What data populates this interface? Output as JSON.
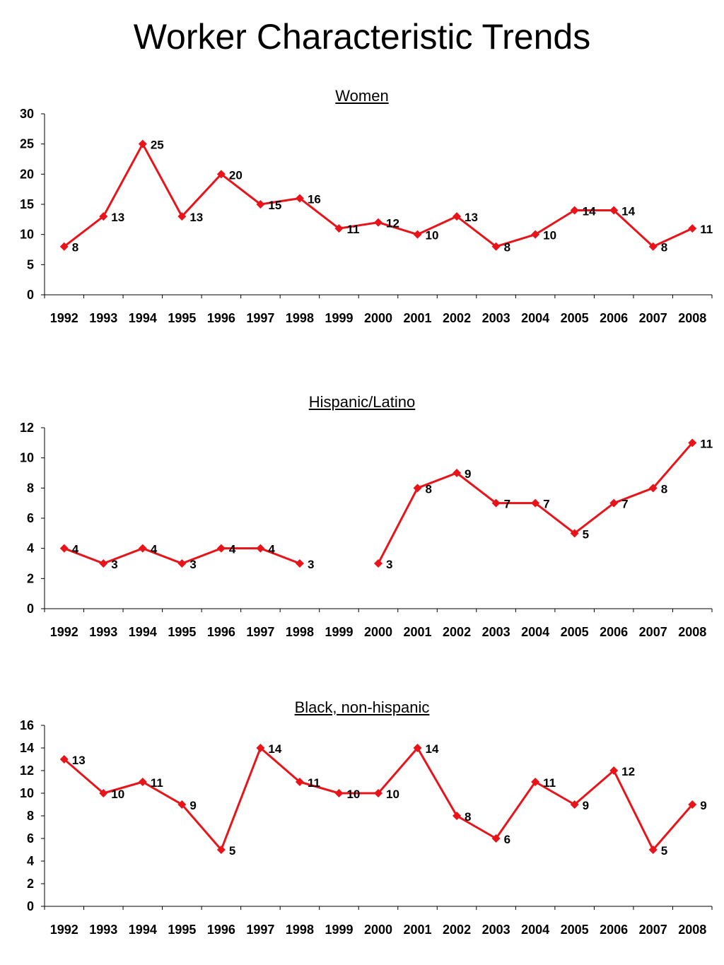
{
  "page": {
    "title": "Worker Characteristic Trends"
  },
  "style": {
    "series_color": "#e8141a",
    "axis_color": "#000000"
  },
  "chart_data": [
    {
      "type": "line",
      "title": "Women",
      "xlabel": "",
      "ylabel": "",
      "categories": [
        "1992",
        "1993",
        "1994",
        "1995",
        "1996",
        "1997",
        "1998",
        "1999",
        "2000",
        "2001",
        "2002",
        "2003",
        "2004",
        "2005",
        "2006",
        "2007",
        "2008"
      ],
      "yticks": [
        0,
        5,
        10,
        15,
        20,
        25,
        30
      ],
      "ylim": [
        0,
        30
      ],
      "grid": false,
      "series": [
        {
          "values": [
            8,
            13,
            25,
            13,
            20,
            15,
            16,
            11,
            12,
            10,
            13,
            8,
            10,
            14,
            14,
            8,
            11
          ]
        }
      ]
    },
    {
      "type": "line",
      "title": "Hispanic/Latino",
      "xlabel": "",
      "ylabel": "",
      "categories": [
        "1992",
        "1993",
        "1994",
        "1995",
        "1996",
        "1997",
        "1998",
        "1999",
        "2000",
        "2001",
        "2002",
        "2003",
        "2004",
        "2005",
        "2006",
        "2007",
        "2008"
      ],
      "yticks": [
        0,
        2,
        4,
        6,
        8,
        10,
        12
      ],
      "ylim": [
        0,
        12
      ],
      "grid": false,
      "series": [
        {
          "values": [
            4,
            3,
            4,
            3,
            4,
            4,
            3,
            null,
            3,
            8,
            9,
            7,
            7,
            5,
            7,
            8,
            11
          ]
        }
      ]
    },
    {
      "type": "line",
      "title": "Black, non-hispanic",
      "xlabel": "",
      "ylabel": "",
      "categories": [
        "1992",
        "1993",
        "1994",
        "1995",
        "1996",
        "1997",
        "1998",
        "1999",
        "2000",
        "2001",
        "2002",
        "2003",
        "2004",
        "2005",
        "2006",
        "2007",
        "2008"
      ],
      "yticks": [
        0,
        2,
        4,
        6,
        8,
        10,
        12,
        14,
        16
      ],
      "ylim": [
        0,
        16
      ],
      "grid": false,
      "series": [
        {
          "values": [
            13,
            10,
            11,
            9,
            5,
            14,
            11,
            10,
            10,
            14,
            8,
            6,
            11,
            9,
            12,
            5,
            9
          ]
        }
      ]
    }
  ]
}
